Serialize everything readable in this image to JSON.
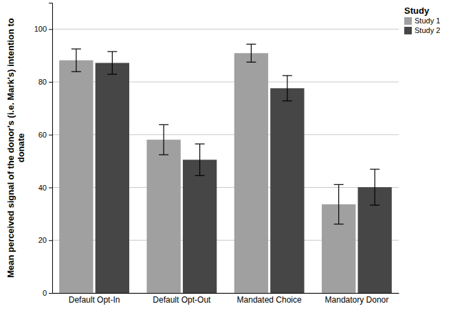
{
  "chart_data": {
    "type": "bar",
    "y_label": "Mean perceived signal of the donor's (i.e. Mark's) intention to donate",
    "categories": [
      "Default Opt-In",
      "Default Opt-Out",
      "Mandated Choice",
      "Mandatory Donor"
    ],
    "series": [
      {
        "name": "Study 1",
        "color": "#a0a0a0",
        "values": [
          88.2,
          58.1,
          90.9,
          33.6
        ],
        "errors": [
          4.3,
          5.7,
          3.4,
          7.5
        ]
      },
      {
        "name": "Study 2",
        "color": "#464646",
        "values": [
          87.2,
          50.5,
          77.6,
          40.1
        ],
        "errors": [
          4.3,
          6.0,
          4.8,
          6.8
        ]
      }
    ],
    "legend_title": "Study",
    "legend": "right",
    "ylim": [
      0,
      110
    ],
    "yticks": [
      0,
      20,
      40,
      60,
      80,
      100
    ],
    "grid": true
  }
}
